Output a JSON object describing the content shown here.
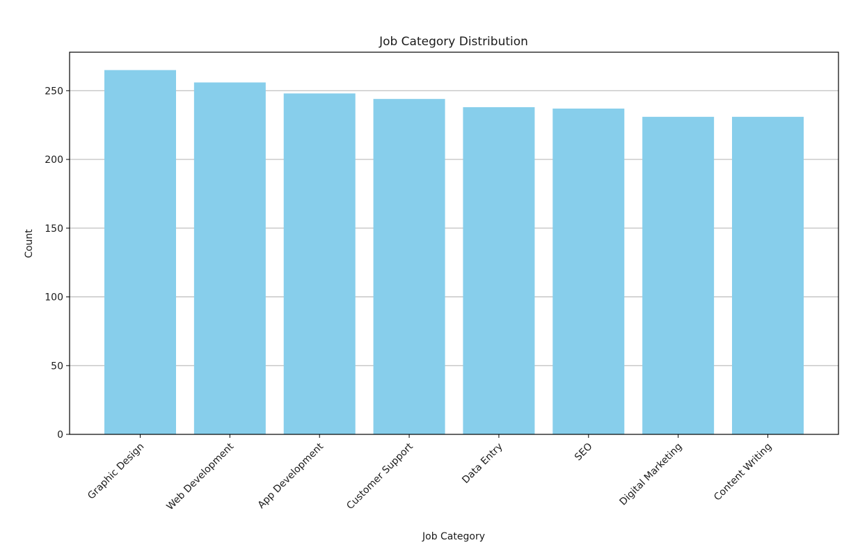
{
  "chart_data": {
    "type": "bar",
    "title": "Job Category Distribution",
    "xlabel": "Job Category",
    "ylabel": "Count",
    "categories": [
      "Graphic Design",
      "Web Development",
      "App Development",
      "Customer Support",
      "Data Entry",
      "SEO",
      "Digital Marketing",
      "Content Writing"
    ],
    "values": [
      265,
      256,
      248,
      244,
      238,
      237,
      231,
      231
    ],
    "ylim": [
      0,
      278
    ],
    "yticks": [
      0,
      50,
      100,
      150,
      200,
      250
    ],
    "grid": "y-axis",
    "legend": "none",
    "colors": {
      "bar": "#87ceeb",
      "grid": "#b0b0b0",
      "axis": "#000000",
      "text": "#1a1a1a"
    }
  }
}
